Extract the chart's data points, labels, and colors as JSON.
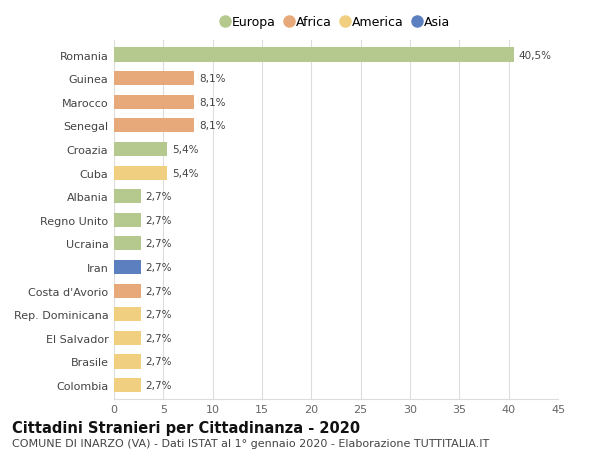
{
  "countries": [
    "Romania",
    "Guinea",
    "Marocco",
    "Senegal",
    "Croazia",
    "Cuba",
    "Albania",
    "Regno Unito",
    "Ucraina",
    "Iran",
    "Costa d'Avorio",
    "Rep. Dominicana",
    "El Salvador",
    "Brasile",
    "Colombia"
  ],
  "values": [
    40.5,
    8.1,
    8.1,
    8.1,
    5.4,
    5.4,
    2.7,
    2.7,
    2.7,
    2.7,
    2.7,
    2.7,
    2.7,
    2.7,
    2.7
  ],
  "labels": [
    "40,5%",
    "8,1%",
    "8,1%",
    "8,1%",
    "5,4%",
    "5,4%",
    "2,7%",
    "2,7%",
    "2,7%",
    "2,7%",
    "2,7%",
    "2,7%",
    "2,7%",
    "2,7%",
    "2,7%"
  ],
  "colors": [
    "#b5c98e",
    "#e8a97a",
    "#e8a97a",
    "#e8a97a",
    "#b5c98e",
    "#f0d080",
    "#b5c98e",
    "#b5c98e",
    "#b5c98e",
    "#5b7fbf",
    "#e8a97a",
    "#f0d080",
    "#f0d080",
    "#f0d080",
    "#f0d080"
  ],
  "legend": [
    {
      "label": "Europa",
      "color": "#b5c98e"
    },
    {
      "label": "Africa",
      "color": "#e8a97a"
    },
    {
      "label": "America",
      "color": "#f0d080"
    },
    {
      "label": "Asia",
      "color": "#5b7fbf"
    }
  ],
  "xlim": [
    0,
    45
  ],
  "xticks": [
    0,
    5,
    10,
    15,
    20,
    25,
    30,
    35,
    40,
    45
  ],
  "title": "Cittadini Stranieri per Cittadinanza - 2020",
  "subtitle": "COMUNE DI INARZO (VA) - Dati ISTAT al 1° gennaio 2020 - Elaborazione TUTTITALIA.IT",
  "title_fontsize": 10.5,
  "subtitle_fontsize": 8,
  "background_color": "#ffffff",
  "grid_color": "#dddddd",
  "bar_height": 0.6
}
